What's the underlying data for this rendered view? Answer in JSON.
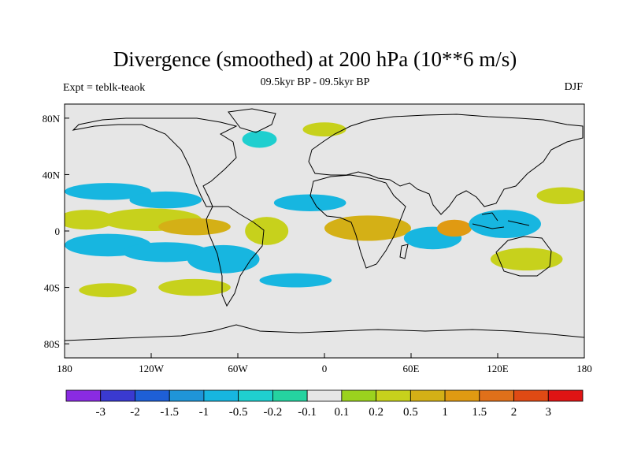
{
  "header": {
    "title": "Divergence (smoothed) at 200 hPa (10**6 m/s)",
    "subtitle": "09.5kyr BP - 09.5kyr BP",
    "experiment": "Expt = teblk-teaok",
    "season": "DJF"
  },
  "colors": {
    "land_fill": "#e6e6e6",
    "coast": "#000000",
    "levels": [
      "#8a2be2",
      "#3a3ad0",
      "#1e5fd6",
      "#1f95d8",
      "#17b6e0",
      "#1fcfcf",
      "#25d3a0",
      "#e6e6e6",
      "#9bd21e",
      "#c7d11c",
      "#d4b016",
      "#e09a12",
      "#e0701a",
      "#e04a14",
      "#e01414"
    ]
  },
  "chart_data": {
    "type": "contour_map",
    "title": "Divergence (smoothed) at 200 hPa (10**6 m/s)",
    "subtitle": "09.5kyr BP - 09.5kyr BP",
    "left_label": "Expt = teblk-teaok",
    "right_label": "DJF",
    "x_ticks": [
      "180",
      "120W",
      "60W",
      "0",
      "60E",
      "120E",
      "180"
    ],
    "y_ticks": [
      "80N",
      "40N",
      "0",
      "40S",
      "80S"
    ],
    "xlim": [
      -180,
      180
    ],
    "ylim": [
      -90,
      90
    ],
    "colorbar_labels": [
      "-3",
      "-2",
      "-1.5",
      "-1",
      "-0.5",
      "-0.2",
      "-0.1",
      "0.1",
      "0.2",
      "0.5",
      "1",
      "1.5",
      "2",
      "3"
    ],
    "blobs": [
      {
        "lon": -150,
        "lat": 28,
        "rx": 30,
        "ry": 6,
        "level": 4
      },
      {
        "lon": -110,
        "lat": 22,
        "rx": 25,
        "ry": 6,
        "level": 4
      },
      {
        "lon": -165,
        "lat": 8,
        "rx": 20,
        "ry": 7,
        "level": 9
      },
      {
        "lon": -120,
        "lat": 8,
        "rx": 35,
        "ry": 8,
        "level": 9
      },
      {
        "lon": -90,
        "lat": 3,
        "rx": 25,
        "ry": 6,
        "level": 10
      },
      {
        "lon": -150,
        "lat": -10,
        "rx": 30,
        "ry": 8,
        "level": 4
      },
      {
        "lon": -110,
        "lat": -15,
        "rx": 30,
        "ry": 7,
        "level": 4
      },
      {
        "lon": -70,
        "lat": -20,
        "rx": 25,
        "ry": 10,
        "level": 4
      },
      {
        "lon": -40,
        "lat": 0,
        "rx": 15,
        "ry": 10,
        "level": 9
      },
      {
        "lon": -10,
        "lat": 20,
        "rx": 25,
        "ry": 6,
        "level": 4
      },
      {
        "lon": 30,
        "lat": 2,
        "rx": 30,
        "ry": 9,
        "level": 10
      },
      {
        "lon": 75,
        "lat": -5,
        "rx": 20,
        "ry": 8,
        "level": 4
      },
      {
        "lon": 90,
        "lat": 2,
        "rx": 12,
        "ry": 6,
        "level": 11
      },
      {
        "lon": 125,
        "lat": 5,
        "rx": 25,
        "ry": 10,
        "level": 4
      },
      {
        "lon": 165,
        "lat": 25,
        "rx": 18,
        "ry": 6,
        "level": 9
      },
      {
        "lon": 140,
        "lat": -20,
        "rx": 25,
        "ry": 8,
        "level": 9
      },
      {
        "lon": -150,
        "lat": -42,
        "rx": 20,
        "ry": 5,
        "level": 9
      },
      {
        "lon": -90,
        "lat": -40,
        "rx": 25,
        "ry": 6,
        "level": 9
      },
      {
        "lon": -20,
        "lat": -35,
        "rx": 25,
        "ry": 5,
        "level": 4
      },
      {
        "lon": -45,
        "lat": 65,
        "rx": 12,
        "ry": 6,
        "level": 5
      },
      {
        "lon": 0,
        "lat": 72,
        "rx": 15,
        "ry": 5,
        "level": 9
      }
    ]
  }
}
